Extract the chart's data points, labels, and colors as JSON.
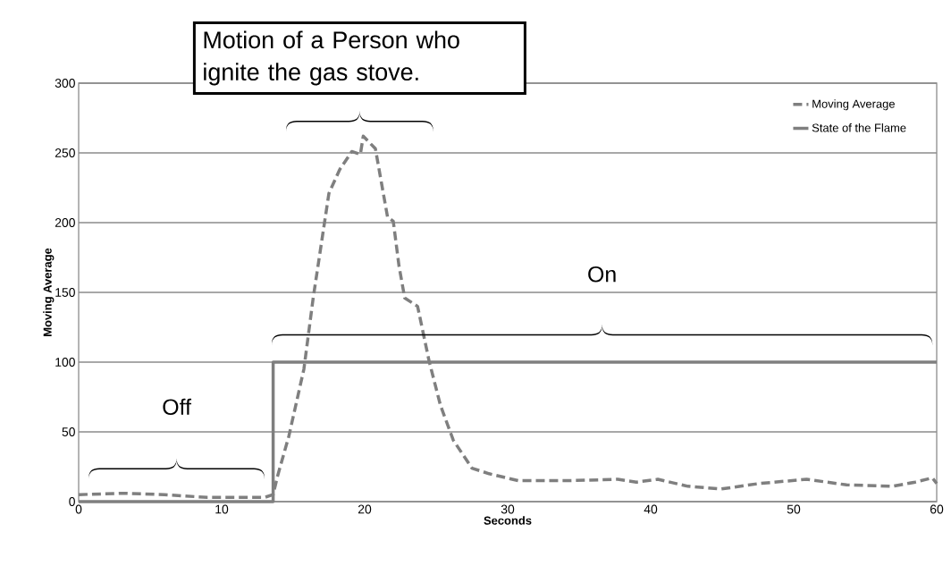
{
  "chart_data": {
    "type": "line",
    "xlabel": "Seconds",
    "ylabel": "Moving Average",
    "xlim": [
      0,
      60
    ],
    "ylim": [
      0,
      300
    ],
    "xticks": [
      0,
      10,
      20,
      30,
      40,
      50,
      60
    ],
    "yticks": [
      0,
      50,
      100,
      150,
      200,
      250,
      300
    ],
    "grid": "y",
    "legend": "top right",
    "marker": "none",
    "series": [
      {
        "name": "Moving Average",
        "color": "#7f7f7f",
        "line_style": "dashed",
        "x": [
          0,
          3,
          6,
          9,
          13,
          13.6,
          13.9,
          14.7,
          15.75,
          16.4,
          17.0,
          17.5,
          18.25,
          19.1,
          19.7,
          19.9,
          20.75,
          21.2,
          21.6,
          22.0,
          22.4,
          22.8,
          23.7,
          24.5,
          25.3,
          26.2,
          27.5,
          28.7,
          30.75,
          34.2,
          37.7,
          39,
          40.5,
          42.6,
          44.9,
          47.6,
          50.9,
          53.7,
          56.9,
          58.5,
          59.7,
          60
        ],
        "values": [
          5,
          6,
          5,
          3,
          3,
          5,
          18,
          47,
          95,
          146,
          187,
          221,
          238,
          251,
          249,
          262,
          253,
          227,
          204,
          201,
          169,
          146,
          140,
          101,
          69,
          44,
          24,
          20,
          15,
          15,
          16,
          14,
          16,
          11,
          9,
          13,
          16,
          12,
          11,
          14,
          17,
          13
        ]
      },
      {
        "name": "State of the Flame",
        "type": "step",
        "color": "#7f7f7f",
        "line_style": "solid",
        "x": [
          0,
          13.6,
          60
        ],
        "values": [
          0,
          100,
          100
        ]
      }
    ],
    "annotations": [
      "Motion of a Person who ignite the gas stove.",
      "On",
      "Off"
    ]
  }
}
